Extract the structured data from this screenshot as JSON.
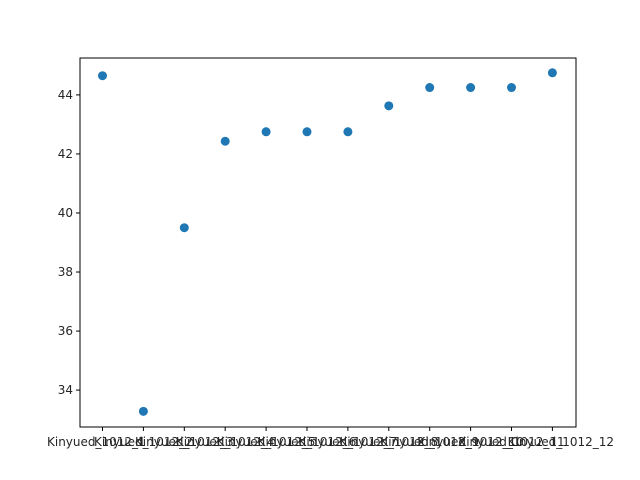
{
  "chart_data": {
    "type": "scatter",
    "title": "",
    "xlabel": "",
    "ylabel": "",
    "categories": [
      "Kinyued_1012_1",
      "Kinyued_1012_2",
      "Kinyued_1012_3",
      "Kinyued_1012_4",
      "Kinyued_1012_5",
      "Kinyued_1012_6",
      "Kinyued_1012_7",
      "Kinyued_1012_8",
      "Kinyued_1012_9",
      "Kinyued_1012_10",
      "Kinyued_1012_11",
      "Kinyued_1012_12"
    ],
    "values": [
      44.65,
      33.28,
      39.5,
      42.43,
      42.75,
      42.75,
      42.75,
      43.63,
      44.25,
      44.25,
      44.25,
      44.75
    ],
    "ylim": [
      32.75,
      45.25
    ],
    "yticks": [
      34,
      36,
      38,
      40,
      42,
      44
    ],
    "grid": false,
    "marker_color": "#1f77b4"
  }
}
